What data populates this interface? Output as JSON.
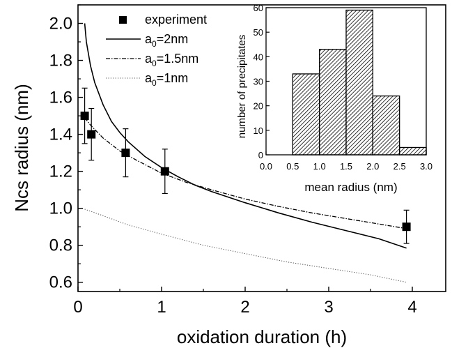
{
  "chart_data": [
    {
      "type": "line",
      "xlabel": "oxidation duration (h)",
      "ylabel": "Ncs radius (nm)",
      "xlim": [
        0,
        4.4
      ],
      "ylim": [
        0.55,
        2.1
      ],
      "x_ticks": [
        "0",
        "1",
        "2",
        "3",
        "4"
      ],
      "x_tick_values": [
        0,
        1,
        2,
        3,
        4
      ],
      "y_ticks": [
        "0.6",
        "0.8",
        "1.0",
        "1.2",
        "1.4",
        "1.6",
        "1.8",
        "2.0"
      ],
      "y_tick_values": [
        0.6,
        0.8,
        1.0,
        1.2,
        1.4,
        1.6,
        1.8,
        2.0
      ],
      "legend_placement": "top-left",
      "grid": false,
      "experiment": {
        "label": "experiment",
        "x": [
          0.08,
          0.16,
          0.57,
          1.04,
          3.93
        ],
        "y": [
          1.5,
          1.4,
          1.3,
          1.2,
          0.9
        ],
        "err": [
          0.15,
          0.14,
          0.13,
          0.12,
          0.09
        ]
      },
      "series": [
        {
          "name_prefix": "a",
          "name_sub": "0",
          "name_suffix": "=2nm",
          "style": "solid",
          "x": [
            0.08,
            0.1,
            0.15,
            0.2,
            0.3,
            0.4,
            0.5,
            0.6,
            0.8,
            1.0,
            1.2,
            1.4,
            1.6,
            1.8,
            2.0,
            2.4,
            2.8,
            3.2,
            3.6,
            3.93
          ],
          "y": [
            2.0,
            1.9,
            1.77,
            1.68,
            1.56,
            1.47,
            1.41,
            1.36,
            1.28,
            1.22,
            1.17,
            1.125,
            1.09,
            1.06,
            1.03,
            0.975,
            0.925,
            0.88,
            0.835,
            0.785
          ]
        },
        {
          "name_prefix": "a",
          "name_sub": "0",
          "name_suffix": "=1.5nm",
          "style": "dashdot",
          "x": [
            0.08,
            0.15,
            0.3,
            0.5,
            0.7,
            1.0,
            1.3,
            1.6,
            2.0,
            2.4,
            2.8,
            3.2,
            3.6,
            3.93
          ],
          "y": [
            1.49,
            1.45,
            1.38,
            1.31,
            1.26,
            1.19,
            1.14,
            1.1,
            1.05,
            1.01,
            0.975,
            0.945,
            0.915,
            0.89
          ]
        },
        {
          "name_prefix": "a",
          "name_sub": "0",
          "name_suffix": "=1nm",
          "style": "dotted",
          "x": [
            0.08,
            0.3,
            0.6,
            1.0,
            1.5,
            2.0,
            2.5,
            3.0,
            3.5,
            3.93
          ],
          "y": [
            0.995,
            0.96,
            0.91,
            0.86,
            0.8,
            0.755,
            0.71,
            0.675,
            0.64,
            0.6
          ]
        }
      ]
    },
    {
      "type": "bar",
      "xlabel": "mean radius (nm)",
      "ylabel": "number of precipitates",
      "xlim": [
        0.0,
        3.0
      ],
      "ylim": [
        0,
        60
      ],
      "x_ticks": [
        "0.0",
        "0.5",
        "1.0",
        "1.5",
        "2.0",
        "2.5",
        "3.0"
      ],
      "x_tick_values": [
        0.0,
        0.5,
        1.0,
        1.5,
        2.0,
        2.5,
        3.0
      ],
      "y_ticks": [
        "0",
        "10",
        "20",
        "30",
        "40",
        "50",
        "60"
      ],
      "y_tick_values": [
        0,
        10,
        20,
        30,
        40,
        50,
        60
      ],
      "bins": [
        [
          0.5,
          1.0
        ],
        [
          1.0,
          1.5
        ],
        [
          1.5,
          2.0
        ],
        [
          2.0,
          2.5
        ],
        [
          2.5,
          3.0
        ]
      ],
      "values": [
        33,
        43,
        59,
        24,
        3
      ],
      "fill": "hatched"
    }
  ]
}
